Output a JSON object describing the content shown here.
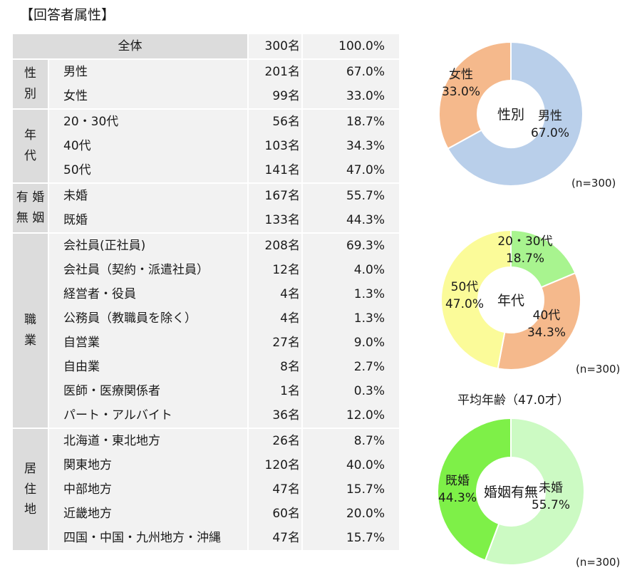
{
  "title": "【回答者属性】",
  "table": {
    "total": {
      "label": "全体",
      "count": "300名",
      "pct": "100.0%"
    },
    "groups": [
      {
        "name": "性別",
        "lines": [
          "性",
          "別"
        ],
        "rows": [
          {
            "label": "男性",
            "count": "201名",
            "pct": "67.0%"
          },
          {
            "label": "女性",
            "count": "99名",
            "pct": "33.0%"
          }
        ]
      },
      {
        "name": "年代",
        "lines": [
          "年",
          "代"
        ],
        "rows": [
          {
            "label": "20・30代",
            "count": "56名",
            "pct": "18.7%"
          },
          {
            "label": "40代",
            "count": "103名",
            "pct": "34.3%"
          },
          {
            "label": "50代",
            "count": "141名",
            "pct": "47.0%"
          }
        ]
      },
      {
        "name": "有婚無姻",
        "lines": [
          "有 婚",
          "無 姻"
        ],
        "rows": [
          {
            "label": "未婚",
            "count": "167名",
            "pct": "55.7%"
          },
          {
            "label": "既婚",
            "count": "133名",
            "pct": "44.3%"
          }
        ]
      },
      {
        "name": "職業",
        "lines": [
          "職",
          "業"
        ],
        "rows": [
          {
            "label": "会社員(正社員)",
            "count": "208名",
            "pct": "69.3%"
          },
          {
            "label": "会社員（契約・派遣社員）",
            "count": "12名",
            "pct": "4.0%"
          },
          {
            "label": "経営者・役員",
            "count": "4名",
            "pct": "1.3%"
          },
          {
            "label": "公務員（教職員を除く）",
            "count": "4名",
            "pct": "1.3%"
          },
          {
            "label": "自営業",
            "count": "27名",
            "pct": "9.0%"
          },
          {
            "label": "自由業",
            "count": "8名",
            "pct": "2.7%"
          },
          {
            "label": "医師・医療関係者",
            "count": "1名",
            "pct": "0.3%"
          },
          {
            "label": "パート・アルバイト",
            "count": "36名",
            "pct": "12.0%"
          }
        ]
      },
      {
        "name": "居住地",
        "lines": [
          "居",
          "住",
          "地"
        ],
        "rows": [
          {
            "label": "北海道・東北地方",
            "count": "26名",
            "pct": "8.7%"
          },
          {
            "label": "関東地方",
            "count": "120名",
            "pct": "40.0%"
          },
          {
            "label": "中部地方",
            "count": "47名",
            "pct": "15.7%"
          },
          {
            "label": "近畿地方",
            "count": "60名",
            "pct": "20.0%"
          },
          {
            "label": "四国・中国・九州地方・沖縄",
            "count": "47名",
            "pct": "15.7%"
          }
        ]
      }
    ]
  },
  "chart_data": [
    {
      "type": "pie",
      "title": "性別",
      "n_label": "(n=300)",
      "slices": [
        {
          "label": "男性",
          "value": 67.0,
          "value_label": "67.0%",
          "color": "#b9cfea"
        },
        {
          "label": "女性",
          "value": 33.0,
          "value_label": "33.0%",
          "color": "#f5b98c"
        }
      ]
    },
    {
      "type": "pie",
      "title": "年代",
      "n_label": "(n=300)",
      "subtitle": "平均年齢（47.0才）",
      "slices": [
        {
          "label": "20・30代",
          "value": 18.7,
          "value_label": "18.7%",
          "color": "#a8f48f"
        },
        {
          "label": "40代",
          "value": 34.3,
          "value_label": "34.3%",
          "color": "#f5b98c"
        },
        {
          "label": "50代",
          "value": 47.0,
          "value_label": "47.0%",
          "color": "#fbfb99"
        }
      ]
    },
    {
      "type": "pie",
      "title": "婚姻有無",
      "n_label": "(n=300)",
      "slices": [
        {
          "label": "未婚",
          "value": 55.7,
          "value_label": "55.7%",
          "color": "#ccfac3"
        },
        {
          "label": "既婚",
          "value": 44.3,
          "value_label": "44.3%",
          "color": "#7ef048"
        }
      ]
    }
  ]
}
